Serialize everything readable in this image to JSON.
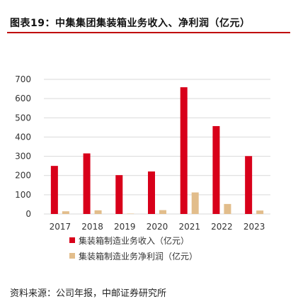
{
  "title": "图表19：中集集团集装箱业务收入、净利润（亿元）",
  "source": "资料来源：公司年报，中邮证券研究所",
  "chart_data": {
    "type": "bar",
    "categories": [
      "2017",
      "2018",
      "2019",
      "2020",
      "2021",
      "2022",
      "2023"
    ],
    "series": [
      {
        "name": "集装箱制造业务收入（亿元）",
        "values": [
          250,
          315,
          202,
          221,
          659,
          457,
          301
        ],
        "color": "#d8001a"
      },
      {
        "name": "集装箱制造业务净利润（亿元）",
        "values": [
          14,
          19,
          2,
          20,
          112,
          52,
          18
        ],
        "color": "#e2bd8b"
      }
    ],
    "yticks": [
      0,
      100,
      200,
      300,
      400,
      500,
      600,
      700
    ],
    "ylim": [
      0,
      700
    ],
    "grid": true,
    "legend_position": "bottom"
  }
}
